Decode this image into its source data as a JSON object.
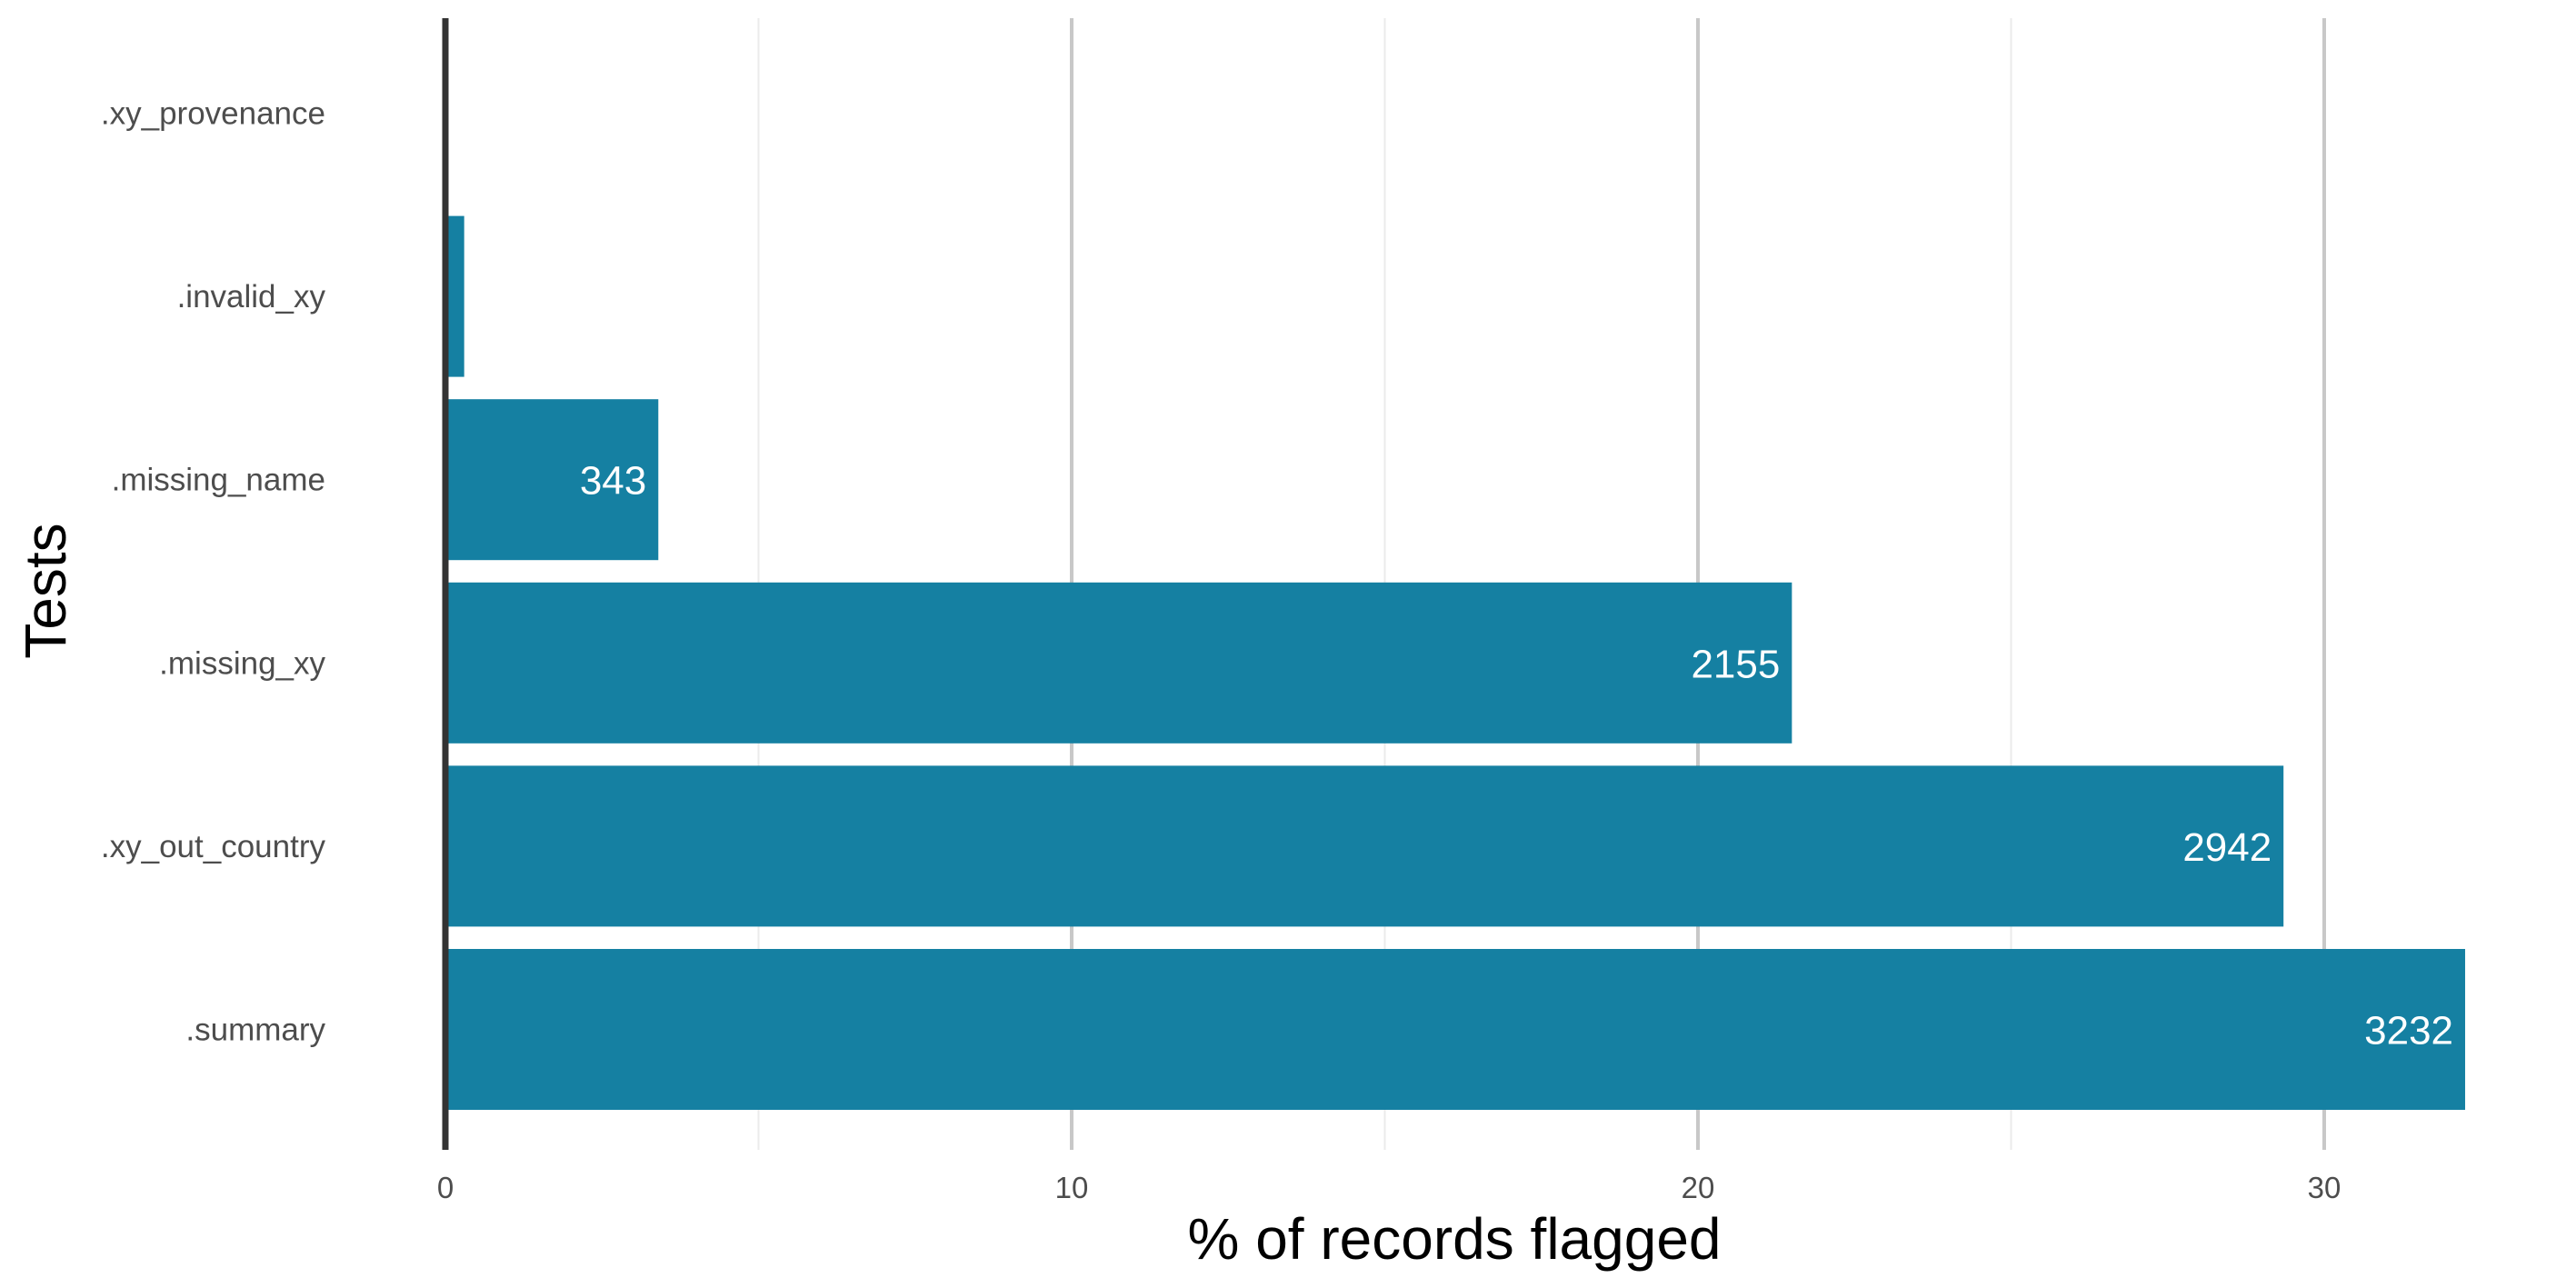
{
  "chart_data": {
    "type": "bar",
    "orientation": "horizontal",
    "categories": [
      ".xy_provenance",
      ".invalid_xy",
      ".missing_name",
      ".missing_xy",
      ".xy_out_country",
      ".summary"
    ],
    "values": [
      0,
      0.3,
      3.4,
      21.5,
      29.35,
      32.25
    ],
    "counts": [
      null,
      null,
      343,
      2155,
      2942,
      3232
    ],
    "bar_color": "#1580a2",
    "xlabel": "% of records flagged",
    "ylabel": "Tests",
    "xlim": [
      0,
      33
    ],
    "x_ticks": [
      0,
      10,
      20,
      30
    ],
    "grid": true,
    "legend": "none"
  }
}
